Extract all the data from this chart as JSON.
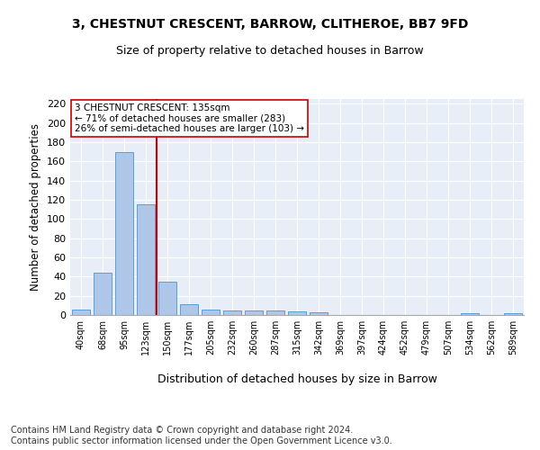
{
  "title_line1": "3, CHESTNUT CRESCENT, BARROW, CLITHEROE, BB7 9FD",
  "title_line2": "Size of property relative to detached houses in Barrow",
  "xlabel": "Distribution of detached houses by size in Barrow",
  "ylabel": "Number of detached properties",
  "categories": [
    "40sqm",
    "68sqm",
    "95sqm",
    "123sqm",
    "150sqm",
    "177sqm",
    "205sqm",
    "232sqm",
    "260sqm",
    "287sqm",
    "315sqm",
    "342sqm",
    "369sqm",
    "397sqm",
    "424sqm",
    "452sqm",
    "479sqm",
    "507sqm",
    "534sqm",
    "562sqm",
    "589sqm"
  ],
  "values": [
    6,
    44,
    170,
    115,
    35,
    11,
    6,
    5,
    5,
    5,
    4,
    3,
    0,
    0,
    0,
    0,
    0,
    0,
    2,
    0,
    2
  ],
  "bar_color": "#aec6e8",
  "bar_edge_color": "#5a9fd4",
  "vline_color": "#cc0000",
  "annotation_text": "3 CHESTNUT CRESCENT: 135sqm\n← 71% of detached houses are smaller (283)\n26% of semi-detached houses are larger (103) →",
  "annotation_box_color": "#ffffff",
  "annotation_box_edge": "#cc0000",
  "ylim": [
    0,
    225
  ],
  "yticks": [
    0,
    20,
    40,
    60,
    80,
    100,
    120,
    140,
    160,
    180,
    200,
    220
  ],
  "bg_color": "#e8eef7",
  "footer": "Contains HM Land Registry data © Crown copyright and database right 2024.\nContains public sector information licensed under the Open Government Licence v3.0.",
  "footer_fontsize": 7,
  "title_fontsize": 10,
  "subtitle_fontsize": 9
}
